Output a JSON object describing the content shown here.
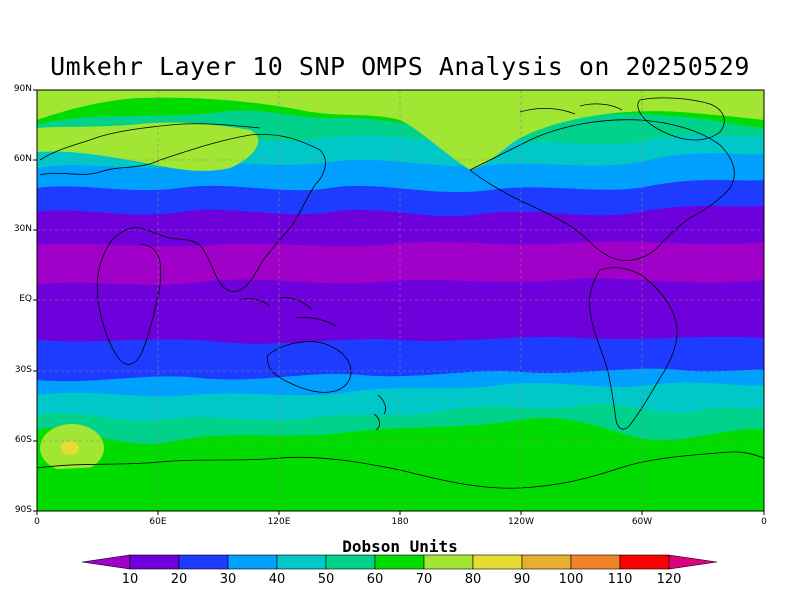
{
  "title": "Umkehr Layer 10 SNP OMPS Analysis on 20250529",
  "units_label": "Dobson Units",
  "lat_labels": [
    "90N",
    "60N",
    "30N",
    "EQ",
    "30S",
    "60S",
    "90S"
  ],
  "lon_labels": [
    "0",
    "60E",
    "120E",
    "180",
    "120W",
    "60W",
    "0"
  ],
  "colorbar": {
    "tick_labels": [
      "10",
      "20",
      "30",
      "40",
      "50",
      "60",
      "70",
      "80",
      "90",
      "100",
      "110",
      "120"
    ],
    "colors": [
      "#a000c8",
      "#6e00dc",
      "#1e3cff",
      "#00a0ff",
      "#00c8c8",
      "#00d28c",
      "#00dc00",
      "#a0e632",
      "#e6dc32",
      "#e6af2d",
      "#f08228",
      "#fa0000",
      "#dc0080"
    ]
  },
  "map": {
    "band_colors": {
      "lt10": "#a000c8",
      "10-20": "#6e00dc",
      "20-30": "#1e3cff",
      "30-40": "#00a0ff",
      "40-50": "#00c8c8",
      "50-60": "#00d28c",
      "60-70": "#00dc00",
      "70-80": "#a0e632",
      "80-90": "#e6dc32"
    }
  }
}
